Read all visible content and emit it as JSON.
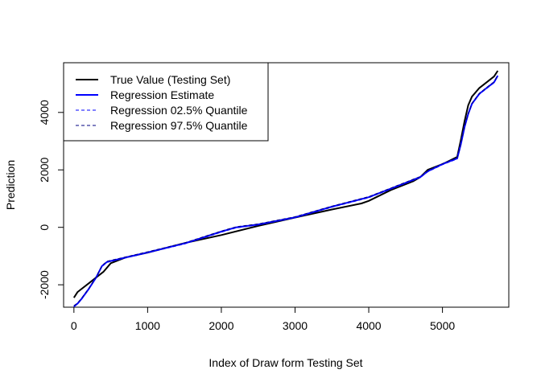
{
  "chart_data": {
    "type": "line",
    "title": "",
    "xlabel": "Index of Draw form Testing Set",
    "ylabel": "Prediction",
    "xlim": [
      -140,
      5900
    ],
    "ylim": [
      -2780,
      5730
    ],
    "x_ticks": [
      0,
      1000,
      2000,
      3000,
      4000,
      5000
    ],
    "y_ticks": [
      -2000,
      0,
      2000,
      4000
    ],
    "grid": false,
    "legend_position": "top-left",
    "series": [
      {
        "name": "True Value (Testing Set)",
        "color": "#000000",
        "style": "solid",
        "x": [
          0,
          50,
          100,
          200,
          300,
          400,
          500,
          700,
          1000,
          1500,
          2000,
          2500,
          3000,
          3500,
          3900,
          4000,
          4300,
          4600,
          4700,
          4800,
          5000,
          5200,
          5250,
          5300,
          5350,
          5400,
          5500,
          5600,
          5700,
          5750
        ],
        "y": [
          -2450,
          -2250,
          -2150,
          -1950,
          -1750,
          -1550,
          -1250,
          -1050,
          -880,
          -550,
          -270,
          50,
          340,
          620,
          830,
          920,
          1300,
          1600,
          1750,
          2000,
          2200,
          2450,
          3050,
          3700,
          4250,
          4550,
          4850,
          5050,
          5250,
          5450
        ]
      },
      {
        "name": "Regression Estimate",
        "color": "#0000ff",
        "style": "solid",
        "x": [
          0,
          50,
          100,
          200,
          300,
          380,
          450,
          700,
          1000,
          1500,
          2000,
          2200,
          2500,
          3000,
          3500,
          4000,
          4300,
          4600,
          4700,
          4800,
          5000,
          5200,
          5250,
          5300,
          5350,
          5400,
          5500,
          5600,
          5700,
          5750
        ],
        "y": [
          -2750,
          -2650,
          -2500,
          -2150,
          -1750,
          -1350,
          -1200,
          -1050,
          -870,
          -560,
          -150,
          0,
          100,
          350,
          720,
          1050,
          1350,
          1650,
          1750,
          1950,
          2200,
          2400,
          2900,
          3500,
          3950,
          4300,
          4650,
          4850,
          5050,
          5280
        ]
      },
      {
        "name": "Regression 02.5% Quantile",
        "color": "#0000ff",
        "style": "dashed",
        "x": [
          0,
          50,
          100,
          200,
          300,
          380,
          450,
          700,
          1000,
          1500,
          2000,
          2200,
          2500,
          3000,
          3500,
          4000,
          4300,
          4600,
          4700,
          4800,
          5000,
          5200,
          5250,
          5300,
          5350,
          5400,
          5500,
          5600,
          5700,
          5750
        ],
        "y": [
          -2770,
          -2670,
          -2520,
          -2170,
          -1770,
          -1370,
          -1220,
          -1070,
          -890,
          -580,
          -170,
          -20,
          80,
          330,
          700,
          1030,
          1330,
          1630,
          1730,
          1930,
          2180,
          2380,
          2880,
          3480,
          3930,
          4280,
          4630,
          4830,
          5030,
          5260
        ]
      },
      {
        "name": "Regression 97.5% Quantile",
        "color": "#000080",
        "style": "dashed",
        "x": [
          0,
          50,
          100,
          200,
          300,
          380,
          450,
          700,
          1000,
          1500,
          2000,
          2200,
          2500,
          3000,
          3500,
          4000,
          4300,
          4600,
          4700,
          4800,
          5000,
          5200,
          5250,
          5300,
          5350,
          5400,
          5500,
          5600,
          5700,
          5750
        ],
        "y": [
          -2730,
          -2630,
          -2480,
          -2130,
          -1730,
          -1330,
          -1180,
          -1030,
          -850,
          -540,
          -130,
          20,
          120,
          370,
          740,
          1070,
          1370,
          1670,
          1770,
          1970,
          2220,
          2420,
          2920,
          3520,
          3970,
          4320,
          4670,
          4870,
          5070,
          5300
        ]
      }
    ]
  }
}
